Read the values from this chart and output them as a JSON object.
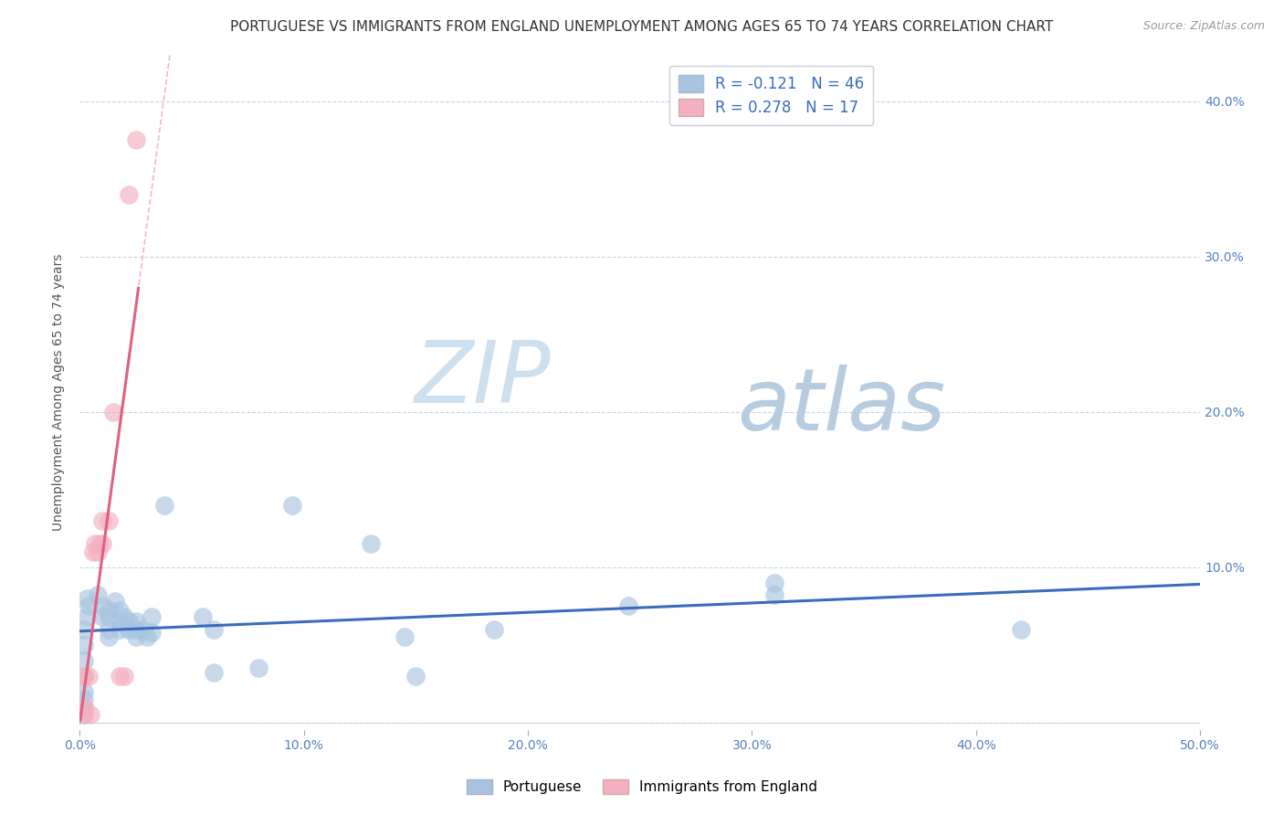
{
  "title": "PORTUGUESE VS IMMIGRANTS FROM ENGLAND UNEMPLOYMENT AMONG AGES 65 TO 74 YEARS CORRELATION CHART",
  "source": "Source: ZipAtlas.com",
  "ylabel": "Unemployment Among Ages 65 to 74 years",
  "xlim": [
    0.0,
    0.5
  ],
  "ylim": [
    -0.005,
    0.43
  ],
  "xticks": [
    0.0,
    0.1,
    0.2,
    0.3,
    0.4,
    0.5
  ],
  "yticks": [
    0.0,
    0.1,
    0.2,
    0.3,
    0.4
  ],
  "xtick_labels": [
    "0.0%",
    "10.0%",
    "20.0%",
    "30.0%",
    "40.0%",
    "50.0%"
  ],
  "ytick_labels_right": [
    "",
    "10.0%",
    "20.0%",
    "30.0%",
    "40.0%"
  ],
  "blue_R": -0.121,
  "blue_N": 46,
  "pink_R": 0.278,
  "pink_N": 17,
  "blue_color": "#a8c4e0",
  "pink_color": "#f4b0c0",
  "blue_line_color": "#3a6bbf",
  "pink_line_color": "#e06080",
  "blue_scatter": [
    [
      0.002,
      0.005
    ],
    [
      0.002,
      0.01
    ],
    [
      0.002,
      0.015
    ],
    [
      0.002,
      0.02
    ],
    [
      0.002,
      0.03
    ],
    [
      0.002,
      0.04
    ],
    [
      0.002,
      0.05
    ],
    [
      0.002,
      0.06
    ],
    [
      0.003,
      0.068
    ],
    [
      0.003,
      0.08
    ],
    [
      0.004,
      0.075
    ],
    [
      0.008,
      0.082
    ],
    [
      0.01,
      0.075
    ],
    [
      0.01,
      0.068
    ],
    [
      0.013,
      0.072
    ],
    [
      0.013,
      0.068
    ],
    [
      0.013,
      0.06
    ],
    [
      0.013,
      0.055
    ],
    [
      0.016,
      0.078
    ],
    [
      0.018,
      0.072
    ],
    [
      0.018,
      0.065
    ],
    [
      0.018,
      0.06
    ],
    [
      0.02,
      0.068
    ],
    [
      0.022,
      0.065
    ],
    [
      0.022,
      0.06
    ],
    [
      0.025,
      0.065
    ],
    [
      0.025,
      0.06
    ],
    [
      0.025,
      0.055
    ],
    [
      0.028,
      0.06
    ],
    [
      0.03,
      0.055
    ],
    [
      0.032,
      0.068
    ],
    [
      0.032,
      0.058
    ],
    [
      0.038,
      0.14
    ],
    [
      0.055,
      0.068
    ],
    [
      0.06,
      0.06
    ],
    [
      0.06,
      0.032
    ],
    [
      0.08,
      0.035
    ],
    [
      0.095,
      0.14
    ],
    [
      0.13,
      0.115
    ],
    [
      0.145,
      0.055
    ],
    [
      0.15,
      0.03
    ],
    [
      0.185,
      0.06
    ],
    [
      0.245,
      0.075
    ],
    [
      0.31,
      0.09
    ],
    [
      0.31,
      0.082
    ],
    [
      0.42,
      0.06
    ]
  ],
  "pink_scatter": [
    [
      0.002,
      0.005
    ],
    [
      0.002,
      0.01
    ],
    [
      0.002,
      0.03
    ],
    [
      0.004,
      0.03
    ],
    [
      0.005,
      0.005
    ],
    [
      0.006,
      0.11
    ],
    [
      0.007,
      0.115
    ],
    [
      0.008,
      0.11
    ],
    [
      0.009,
      0.115
    ],
    [
      0.01,
      0.115
    ],
    [
      0.01,
      0.13
    ],
    [
      0.013,
      0.13
    ],
    [
      0.015,
      0.2
    ],
    [
      0.018,
      0.03
    ],
    [
      0.02,
      0.03
    ],
    [
      0.022,
      0.34
    ],
    [
      0.025,
      0.375
    ]
  ],
  "watermark_zip": "ZIP",
  "watermark_atlas": "atlas",
  "watermark_color_zip": "#cce0f0",
  "watermark_color_atlas": "#b8cce0",
  "background_color": "#ffffff",
  "grid_color": "#c8d4e8",
  "title_fontsize": 11,
  "axis_label_fontsize": 10,
  "tick_fontsize": 10,
  "legend_fontsize": 12
}
